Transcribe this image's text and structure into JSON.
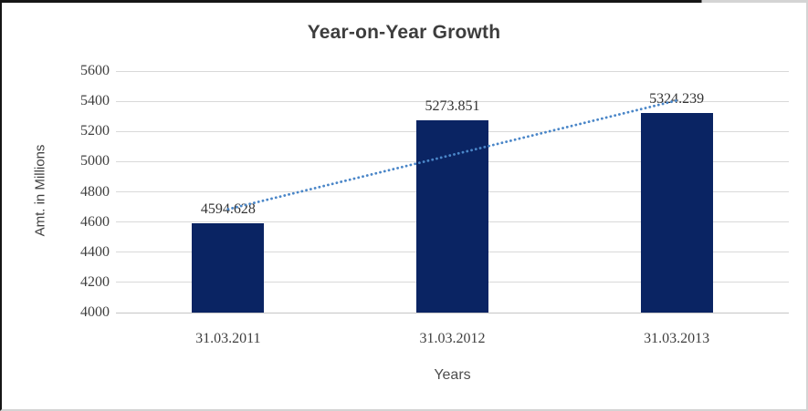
{
  "chart_data": {
    "type": "bar",
    "title": "Year-on-Year Growth",
    "xlabel": "Years",
    "ylabel": "Amt. in Millions",
    "categories": [
      "31.03.2011",
      "31.03.2012",
      "31.03.2013"
    ],
    "values": [
      4594.628,
      5273.851,
      5324.239
    ],
    "data_labels": [
      "4594.628",
      "5273.851",
      "5324.239"
    ],
    "ylim": [
      4000,
      5600
    ],
    "ytick_step": 200,
    "yticks": [
      "5600",
      "5400",
      "5200",
      "5000",
      "4800",
      "4600",
      "4400",
      "4200",
      "4000"
    ],
    "grid": "horizontal-on",
    "legend": "none",
    "bar_color": "#0a2463",
    "trendline": {
      "type": "linear",
      "style": "dotted",
      "color": "#4a86c8",
      "start_value": 4685,
      "end_value": 5405
    }
  }
}
